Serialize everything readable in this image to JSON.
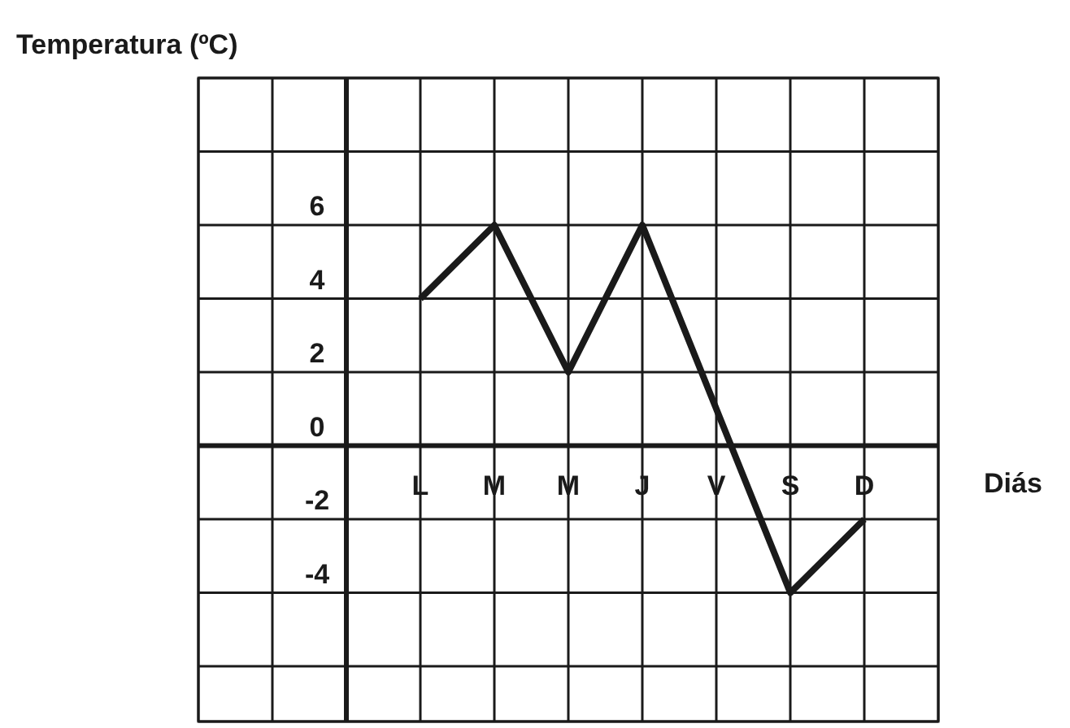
{
  "chart_data": {
    "type": "line",
    "ylabel": "Temperatura (ºC)",
    "xlabel": "Diás",
    "categories": [
      "L",
      "M",
      "M",
      "J",
      "V",
      "S",
      "D"
    ],
    "values": [
      4,
      6,
      2,
      6,
      1,
      -4,
      -2
    ],
    "color": "#1a1a1a",
    "ylim": [
      -7.5,
      10
    ],
    "yticks": [
      {
        "value": -6,
        "label": null
      },
      -4,
      -2,
      0,
      2,
      4,
      6,
      {
        "value": 8,
        "label": null
      },
      {
        "value": 10,
        "label": null
      }
    ],
    "grid": true,
    "marker": "none"
  }
}
